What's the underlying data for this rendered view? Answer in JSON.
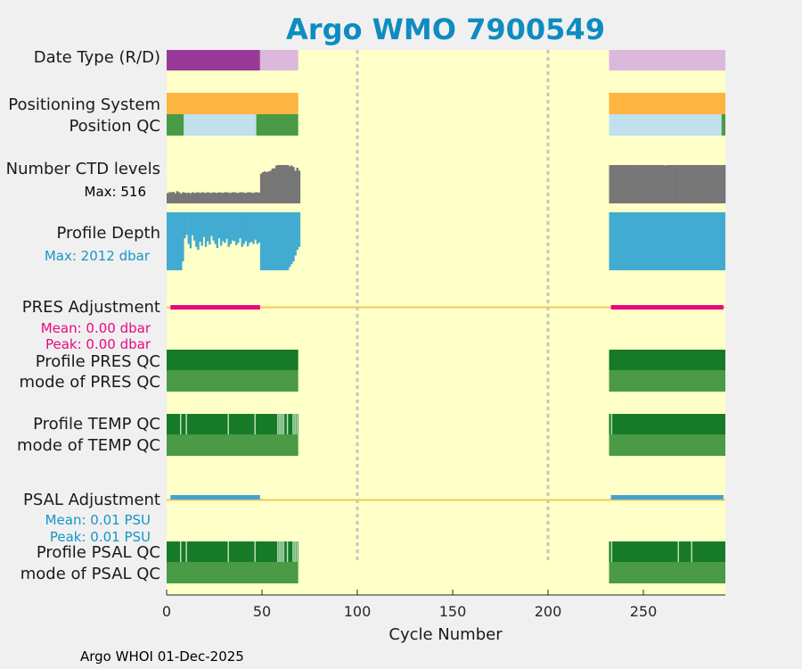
{
  "chart_data": {
    "type": "strip",
    "title": "Argo WMO 7900549",
    "xlabel": "Cycle Number",
    "xlim": [
      0,
      293
    ],
    "xticks": [
      0,
      50,
      100,
      150,
      200,
      250
    ],
    "tick_labels": [
      "0",
      "50",
      "100",
      "150",
      "200",
      "250"
    ],
    "vlines": [
      100,
      200
    ],
    "coverage": [
      [
        0,
        69
      ],
      [
        232,
        293
      ]
    ],
    "footer": "Argo WHOI 01-Dec-2025",
    "colors": {
      "background": "#ffffc8",
      "page": "#f0f0f0",
      "title": "#0e8cc0",
      "realtime": "#9a3a98",
      "delayed": "#dbb8dc",
      "positioning": "#fdb441",
      "qc_good": "#4a9a46",
      "qc_light": "#c0e0ee",
      "qc_dark": "#177a28",
      "qc_pale": "#b8e0b8",
      "ctd": "#767676",
      "depth": "#42abd1",
      "pres": "#e8097f",
      "psal": "#42a3d3",
      "refline": "#f3c75a"
    },
    "rows": {
      "date_type": {
        "label": "Date Type (R/D)",
        "segments": [
          {
            "start": 0,
            "end": 49,
            "mode": "R"
          },
          {
            "start": 49,
            "end": 69,
            "mode": "D"
          },
          {
            "start": 232,
            "end": 293,
            "mode": "D"
          }
        ]
      },
      "positioning_system": {
        "label": "Positioning System",
        "segments": [
          [
            0,
            69
          ],
          [
            232,
            293
          ]
        ]
      },
      "position_qc": {
        "label": "Position QC",
        "segments": [
          {
            "start": 0,
            "end": 9,
            "qc": "good"
          },
          {
            "start": 9,
            "end": 10,
            "qc": "light"
          },
          {
            "start": 10,
            "end": 47,
            "qc": "light"
          },
          {
            "start": 47,
            "end": 69,
            "qc": "good"
          },
          {
            "start": 232,
            "end": 291,
            "qc": "light"
          },
          {
            "start": 291,
            "end": 293,
            "qc": "good"
          }
        ]
      },
      "ctd_levels": {
        "label": "Number CTD levels",
        "max_text": "Max: 516",
        "max": 516,
        "values": [
          140,
          150,
          150,
          155,
          135,
          165,
          150,
          130,
          150,
          145,
          140,
          145,
          135,
          150,
          140,
          145,
          150,
          140,
          150,
          145,
          140,
          150,
          145,
          140,
          150,
          145,
          140,
          150,
          145,
          140,
          150,
          150,
          145,
          140,
          150,
          150,
          145,
          140,
          150,
          150,
          145,
          140,
          150,
          150,
          145,
          140,
          150,
          150,
          145,
          400,
          420,
          430,
          420,
          430,
          440,
          470,
          470,
          510,
          516,
          516,
          516,
          516,
          516,
          516,
          500,
          510,
          490,
          440,
          480,
          440
        ],
        "late_values": [
          516,
          516,
          516,
          516,
          516,
          516,
          516,
          516,
          516,
          516,
          516,
          516,
          516,
          516,
          516,
          516,
          516,
          516,
          516,
          516,
          516,
          516,
          516,
          516,
          516,
          516,
          516,
          516,
          516,
          510,
          516,
          516,
          516,
          516,
          516,
          516,
          516,
          516,
          516,
          516,
          516,
          516,
          516,
          516,
          516,
          516,
          516,
          516,
          516,
          516,
          516,
          516,
          516,
          516,
          516,
          516,
          516,
          516,
          516,
          516,
          516
        ]
      },
      "profile_depth": {
        "label": "Profile Depth",
        "max_text": "Max: 2012 dbar",
        "max": 2012,
        "values": [
          2012,
          2012,
          2012,
          2012,
          2012,
          2012,
          2012,
          2012,
          1700,
          900,
          780,
          1100,
          1250,
          800,
          980,
          1200,
          1300,
          1020,
          1160,
          860,
          1200,
          1000,
          1120,
          820,
          980,
          1100,
          1240,
          900,
          1160,
          1000,
          1060,
          920,
          1200,
          1100,
          980,
          1000,
          1140,
          1060,
          900,
          1200,
          1100,
          1000,
          1180,
          1060,
          1020,
          1100,
          950,
          1100,
          1050,
          2012,
          2012,
          2012,
          2012,
          2012,
          2012,
          2012,
          2012,
          2012,
          2012,
          2012,
          2012,
          2012,
          2012,
          2012,
          1900,
          1800,
          1700,
          1500,
          1300,
          1200
        ],
        "late_values": "full"
      },
      "pres_adjustment": {
        "label": "PRES Adjustment",
        "mean_text": "Mean: 0.00 dbar",
        "peak_text": "Peak: 0.00 dbar",
        "segments": [
          [
            2,
            49
          ],
          [
            233,
            292
          ]
        ]
      },
      "profile_pres_qc": {
        "label": "Profile PRES QC",
        "segments": [
          [
            0,
            69
          ],
          [
            232,
            293
          ]
        ]
      },
      "mode_pres_qc": {
        "label": "mode of PRES QC",
        "segments": [
          [
            0,
            69
          ],
          [
            232,
            293
          ]
        ]
      },
      "profile_temp_qc": {
        "label": "Profile TEMP QC",
        "segments": [
          [
            0,
            69
          ],
          [
            232,
            293
          ]
        ],
        "pale_cycles": [
          7,
          10,
          32,
          46,
          58,
          59,
          60,
          61,
          63,
          66,
          67,
          68,
          233
        ]
      },
      "mode_temp_qc": {
        "label": "mode of TEMP QC",
        "segments": [
          [
            0,
            69
          ],
          [
            232,
            293
          ]
        ]
      },
      "psal_adjustment": {
        "label": "PSAL Adjustment",
        "mean_text": "Mean: 0.01 PSU",
        "peak_text": "Peak: 0.01 PSU",
        "segments": [
          [
            2,
            49
          ],
          [
            233,
            292
          ]
        ]
      },
      "profile_psal_qc": {
        "label": "Profile PSAL QC",
        "segments": [
          [
            0,
            69
          ],
          [
            232,
            293
          ]
        ],
        "pale_cycles": [
          7,
          10,
          32,
          46,
          58,
          59,
          60,
          61,
          63,
          66,
          67,
          68,
          233,
          268,
          275
        ]
      },
      "mode_psal_qc": {
        "label": "mode of PSAL QC",
        "segments": [
          [
            0,
            69
          ],
          [
            232,
            293
          ]
        ]
      }
    }
  }
}
